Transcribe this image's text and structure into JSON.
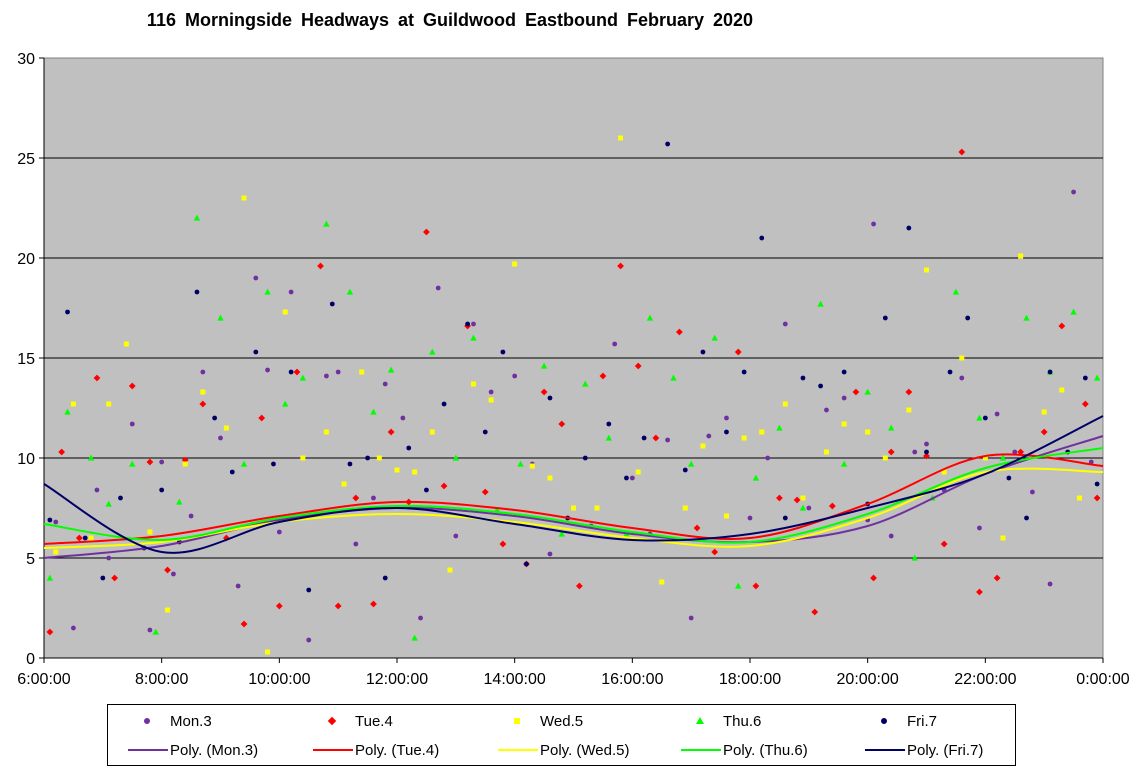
{
  "chart_data": {
    "type": "scatter",
    "title": "116 Morningside Headways at Guildwood Eastbound February 2020",
    "xlabel": "",
    "ylabel": "",
    "x_range_hours": [
      6,
      24
    ],
    "ylim": [
      0,
      30
    ],
    "y_ticks": [
      "0",
      "5",
      "10",
      "15",
      "20",
      "25",
      "30"
    ],
    "x_ticks": [
      "6:00:00",
      "8:00:00",
      "10:00:00",
      "12:00:00",
      "14:00:00",
      "16:00:00",
      "18:00:00",
      "20:00:00",
      "22:00:00",
      "0:00:00"
    ],
    "grid": "horizontal major gridlines",
    "plot_background": "#c0c0c0",
    "legend_position": "bottom",
    "series": [
      {
        "name": "Mon.3",
        "marker": "circle",
        "color": "#7030a0",
        "points": [
          [
            6.2,
            6.8
          ],
          [
            6.5,
            1.5
          ],
          [
            6.9,
            8.4
          ],
          [
            7.1,
            5.0
          ],
          [
            7.5,
            11.7
          ],
          [
            7.8,
            1.4
          ],
          [
            8.0,
            9.8
          ],
          [
            8.2,
            4.2
          ],
          [
            8.5,
            7.1
          ],
          [
            8.7,
            14.3
          ],
          [
            9.0,
            11.0
          ],
          [
            9.3,
            3.6
          ],
          [
            9.6,
            19.0
          ],
          [
            9.8,
            14.4
          ],
          [
            10.0,
            6.3
          ],
          [
            10.2,
            18.3
          ],
          [
            10.5,
            0.9
          ],
          [
            10.8,
            14.1
          ],
          [
            11.0,
            14.3
          ],
          [
            11.3,
            5.7
          ],
          [
            11.6,
            8.0
          ],
          [
            11.8,
            13.7
          ],
          [
            12.1,
            12.0
          ],
          [
            12.4,
            2.0
          ],
          [
            12.7,
            18.5
          ],
          [
            13.0,
            6.1
          ],
          [
            13.3,
            16.7
          ],
          [
            13.6,
            13.3
          ],
          [
            14.0,
            14.1
          ],
          [
            14.3,
            9.7
          ],
          [
            14.6,
            5.2
          ],
          [
            15.0,
            7.5
          ],
          [
            15.3,
            6.6
          ],
          [
            15.7,
            15.7
          ],
          [
            16.0,
            9.0
          ],
          [
            16.3,
            6.2
          ],
          [
            16.6,
            10.9
          ],
          [
            17.0,
            2.0
          ],
          [
            17.3,
            11.1
          ],
          [
            17.6,
            12.0
          ],
          [
            18.0,
            7.0
          ],
          [
            18.3,
            10.0
          ],
          [
            18.6,
            16.7
          ],
          [
            19.0,
            7.5
          ],
          [
            19.3,
            12.4
          ],
          [
            19.6,
            13.0
          ],
          [
            20.0,
            6.9
          ],
          [
            20.1,
            21.7
          ],
          [
            20.4,
            6.1
          ],
          [
            20.8,
            10.3
          ],
          [
            21.0,
            10.7
          ],
          [
            21.3,
            8.4
          ],
          [
            21.6,
            14.0
          ],
          [
            21.9,
            6.5
          ],
          [
            22.2,
            12.2
          ],
          [
            22.5,
            10.3
          ],
          [
            22.8,
            8.3
          ],
          [
            23.1,
            3.7
          ],
          [
            23.5,
            23.3
          ],
          [
            23.8,
            9.8
          ]
        ]
      },
      {
        "name": "Tue.4",
        "marker": "diamond",
        "color": "#ff0000",
        "points": [
          [
            6.1,
            1.3
          ],
          [
            6.3,
            10.3
          ],
          [
            6.6,
            6.0
          ],
          [
            6.9,
            14.0
          ],
          [
            7.2,
            4.0
          ],
          [
            7.5,
            13.6
          ],
          [
            7.8,
            9.8
          ],
          [
            8.1,
            4.4
          ],
          [
            8.4,
            9.9
          ],
          [
            8.7,
            12.7
          ],
          [
            9.1,
            6.0
          ],
          [
            9.4,
            1.7
          ],
          [
            9.7,
            12.0
          ],
          [
            10.0,
            2.6
          ],
          [
            10.3,
            14.3
          ],
          [
            10.7,
            19.6
          ],
          [
            11.0,
            2.6
          ],
          [
            11.3,
            8.0
          ],
          [
            11.6,
            2.7
          ],
          [
            11.9,
            11.3
          ],
          [
            12.2,
            7.8
          ],
          [
            12.5,
            21.3
          ],
          [
            12.8,
            8.6
          ],
          [
            13.2,
            16.6
          ],
          [
            13.5,
            8.3
          ],
          [
            13.8,
            5.7
          ],
          [
            14.2,
            4.7
          ],
          [
            14.5,
            13.3
          ],
          [
            14.8,
            11.7
          ],
          [
            15.1,
            3.6
          ],
          [
            15.5,
            14.1
          ],
          [
            15.8,
            19.6
          ],
          [
            16.1,
            14.6
          ],
          [
            16.4,
            11.0
          ],
          [
            16.8,
            16.3
          ],
          [
            17.1,
            6.5
          ],
          [
            17.4,
            5.3
          ],
          [
            17.8,
            15.3
          ],
          [
            18.1,
            3.6
          ],
          [
            18.5,
            8.0
          ],
          [
            18.8,
            7.9
          ],
          [
            19.1,
            2.3
          ],
          [
            19.4,
            7.6
          ],
          [
            19.8,
            13.3
          ],
          [
            20.1,
            4.0
          ],
          [
            20.4,
            10.3
          ],
          [
            20.7,
            13.3
          ],
          [
            21.0,
            10.1
          ],
          [
            21.3,
            5.7
          ],
          [
            21.6,
            25.3
          ],
          [
            21.9,
            3.3
          ],
          [
            22.2,
            4.0
          ],
          [
            22.6,
            10.3
          ],
          [
            23.0,
            11.3
          ],
          [
            23.3,
            16.6
          ],
          [
            23.7,
            12.7
          ],
          [
            23.9,
            8.0
          ]
        ]
      },
      {
        "name": "Wed.5",
        "marker": "square",
        "color": "#ffff00",
        "points": [
          [
            6.2,
            5.3
          ],
          [
            6.5,
            12.7
          ],
          [
            6.8,
            6.0
          ],
          [
            7.1,
            12.7
          ],
          [
            7.4,
            15.7
          ],
          [
            7.8,
            6.3
          ],
          [
            8.1,
            2.4
          ],
          [
            8.4,
            9.7
          ],
          [
            8.7,
            13.3
          ],
          [
            9.1,
            11.5
          ],
          [
            9.4,
            23.0
          ],
          [
            9.8,
            0.3
          ],
          [
            10.1,
            17.3
          ],
          [
            10.4,
            10.0
          ],
          [
            10.8,
            11.3
          ],
          [
            11.1,
            8.7
          ],
          [
            11.4,
            14.3
          ],
          [
            11.7,
            10.0
          ],
          [
            12.0,
            9.4
          ],
          [
            12.3,
            9.3
          ],
          [
            12.6,
            11.3
          ],
          [
            12.9,
            4.4
          ],
          [
            13.3,
            13.7
          ],
          [
            13.6,
            12.9
          ],
          [
            14.0,
            19.7
          ],
          [
            14.3,
            9.6
          ],
          [
            14.6,
            9.0
          ],
          [
            15.0,
            7.5
          ],
          [
            15.4,
            7.5
          ],
          [
            15.8,
            26.0
          ],
          [
            16.1,
            9.3
          ],
          [
            16.5,
            3.8
          ],
          [
            16.9,
            7.5
          ],
          [
            17.2,
            10.6
          ],
          [
            17.6,
            7.1
          ],
          [
            17.9,
            11.0
          ],
          [
            18.2,
            11.3
          ],
          [
            18.6,
            12.7
          ],
          [
            18.9,
            8.0
          ],
          [
            19.3,
            10.3
          ],
          [
            19.6,
            11.7
          ],
          [
            20.0,
            11.3
          ],
          [
            20.3,
            10.0
          ],
          [
            20.7,
            12.4
          ],
          [
            21.0,
            19.4
          ],
          [
            21.3,
            9.3
          ],
          [
            21.6,
            15.0
          ],
          [
            22.0,
            10.0
          ],
          [
            22.3,
            6.0
          ],
          [
            22.6,
            20.1
          ],
          [
            23.0,
            12.3
          ],
          [
            23.3,
            13.4
          ],
          [
            23.6,
            8.0
          ]
        ]
      },
      {
        "name": "Thu.6",
        "marker": "triangle",
        "color": "#00ff00",
        "points": [
          [
            6.1,
            4.0
          ],
          [
            6.4,
            12.3
          ],
          [
            6.8,
            10.0
          ],
          [
            7.1,
            7.7
          ],
          [
            7.5,
            9.7
          ],
          [
            7.9,
            1.3
          ],
          [
            8.3,
            7.8
          ],
          [
            8.6,
            22.0
          ],
          [
            9.0,
            17.0
          ],
          [
            9.4,
            9.7
          ],
          [
            9.8,
            18.3
          ],
          [
            10.1,
            12.7
          ],
          [
            10.4,
            14.0
          ],
          [
            10.8,
            21.7
          ],
          [
            11.2,
            18.3
          ],
          [
            11.6,
            12.3
          ],
          [
            11.9,
            14.4
          ],
          [
            12.3,
            1.0
          ],
          [
            12.6,
            15.3
          ],
          [
            13.0,
            10.0
          ],
          [
            13.3,
            16.0
          ],
          [
            13.7,
            7.4
          ],
          [
            14.1,
            9.7
          ],
          [
            14.5,
            14.6
          ],
          [
            14.8,
            6.2
          ],
          [
            15.2,
            13.7
          ],
          [
            15.6,
            11.0
          ],
          [
            15.9,
            6.2
          ],
          [
            16.3,
            17.0
          ],
          [
            16.7,
            14.0
          ],
          [
            17.0,
            9.7
          ],
          [
            17.4,
            16.0
          ],
          [
            17.8,
            3.6
          ],
          [
            18.1,
            9.0
          ],
          [
            18.5,
            11.5
          ],
          [
            18.9,
            7.5
          ],
          [
            19.2,
            17.7
          ],
          [
            19.6,
            9.7
          ],
          [
            20.0,
            13.3
          ],
          [
            20.4,
            11.5
          ],
          [
            20.8,
            5.0
          ],
          [
            21.1,
            8.0
          ],
          [
            21.5,
            18.3
          ],
          [
            21.9,
            12.0
          ],
          [
            22.3,
            10.0
          ],
          [
            22.7,
            17.0
          ],
          [
            23.1,
            14.3
          ],
          [
            23.5,
            17.3
          ],
          [
            23.9,
            14.0
          ]
        ]
      },
      {
        "name": "Fri.7",
        "marker": "circle",
        "color": "#000066",
        "points": [
          [
            6.1,
            6.9
          ],
          [
            6.4,
            17.3
          ],
          [
            6.7,
            6.0
          ],
          [
            7.0,
            4.0
          ],
          [
            7.3,
            8.0
          ],
          [
            7.7,
            5.5
          ],
          [
            8.0,
            8.4
          ],
          [
            8.3,
            5.8
          ],
          [
            8.6,
            18.3
          ],
          [
            8.9,
            12.0
          ],
          [
            9.2,
            9.3
          ],
          [
            9.6,
            15.3
          ],
          [
            9.9,
            9.7
          ],
          [
            10.2,
            14.3
          ],
          [
            10.5,
            3.4
          ],
          [
            10.9,
            17.7
          ],
          [
            11.2,
            9.7
          ],
          [
            11.5,
            10.0
          ],
          [
            11.8,
            4.0
          ],
          [
            12.2,
            10.5
          ],
          [
            12.5,
            8.4
          ],
          [
            12.8,
            12.7
          ],
          [
            13.2,
            16.7
          ],
          [
            13.5,
            11.3
          ],
          [
            13.8,
            15.3
          ],
          [
            14.2,
            4.7
          ],
          [
            14.6,
            13.0
          ],
          [
            14.9,
            7.0
          ],
          [
            15.2,
            10.0
          ],
          [
            15.6,
            11.7
          ],
          [
            15.9,
            9.0
          ],
          [
            16.2,
            11.0
          ],
          [
            16.6,
            25.7
          ],
          [
            16.9,
            9.4
          ],
          [
            17.2,
            15.3
          ],
          [
            17.6,
            11.3
          ],
          [
            17.9,
            14.3
          ],
          [
            18.2,
            21.0
          ],
          [
            18.6,
            7.0
          ],
          [
            18.9,
            14.0
          ],
          [
            19.2,
            13.6
          ],
          [
            19.6,
            14.3
          ],
          [
            20.0,
            7.7
          ],
          [
            20.3,
            17.0
          ],
          [
            20.7,
            21.5
          ],
          [
            21.0,
            10.3
          ],
          [
            21.4,
            14.3
          ],
          [
            21.7,
            17.0
          ],
          [
            22.0,
            12.0
          ],
          [
            22.4,
            9.0
          ],
          [
            22.7,
            7.0
          ],
          [
            23.1,
            14.3
          ],
          [
            23.4,
            10.3
          ],
          [
            23.7,
            14.0
          ],
          [
            23.9,
            8.7
          ]
        ]
      }
    ],
    "trendlines": [
      {
        "name": "Poly. (Mon.3)",
        "color": "#7030a0",
        "x": [
          6,
          8,
          10,
          12,
          14,
          16,
          18,
          20,
          22,
          24
        ],
        "values": [
          5.0,
          5.6,
          6.9,
          7.5,
          7.1,
          6.2,
          5.8,
          6.6,
          9.2,
          11.1
        ]
      },
      {
        "name": "Poly. (Tue.4)",
        "color": "#ff0000",
        "x": [
          6,
          8,
          10,
          12,
          14,
          16,
          18,
          20,
          22,
          24
        ],
        "values": [
          5.7,
          6.1,
          7.1,
          7.8,
          7.4,
          6.5,
          6.0,
          7.7,
          10.1,
          9.6
        ]
      },
      {
        "name": "Poly. (Wed.5)",
        "color": "#ffff00",
        "x": [
          6,
          8,
          10,
          12,
          14,
          16,
          18,
          20,
          22,
          24
        ],
        "values": [
          5.5,
          5.8,
          6.8,
          7.2,
          6.8,
          6.0,
          5.6,
          7.0,
          9.3,
          9.3
        ]
      },
      {
        "name": "Poly. (Thu.6)",
        "color": "#00ff00",
        "x": [
          6,
          8,
          10,
          12,
          14,
          16,
          18,
          20,
          22,
          24
        ],
        "values": [
          6.7,
          5.9,
          7.0,
          7.6,
          7.2,
          6.3,
          5.8,
          7.2,
          9.5,
          10.5
        ]
      },
      {
        "name": "Poly. (Fri.7)",
        "color": "#000066",
        "x": [
          6,
          8,
          10,
          12,
          14,
          16,
          18,
          20,
          22,
          24
        ],
        "values": [
          8.7,
          5.3,
          6.8,
          7.5,
          6.7,
          5.9,
          6.2,
          7.5,
          9.2,
          12.1
        ]
      }
    ]
  }
}
